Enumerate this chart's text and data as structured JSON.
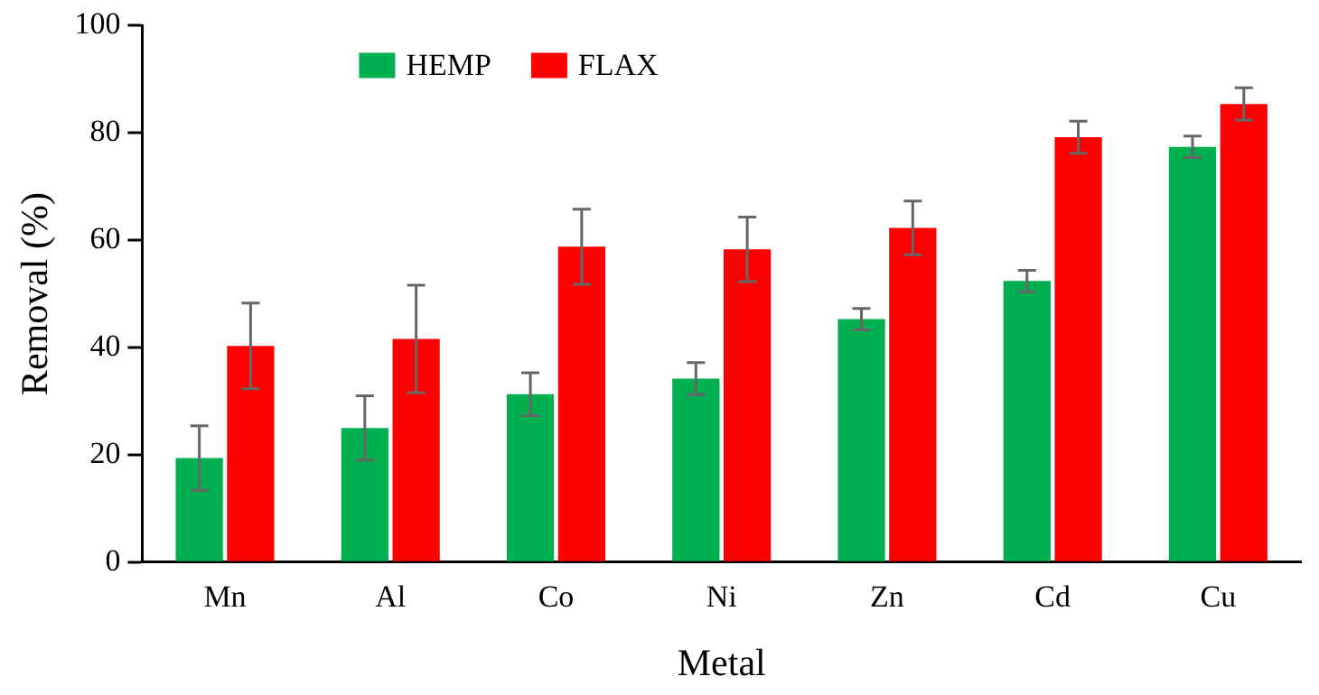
{
  "chart_data": {
    "type": "bar",
    "xlabel": "Metal",
    "ylabel": "Removal (%)",
    "categories": [
      "Mn",
      "Al",
      "Co",
      "Ni",
      "Zn",
      "Cd",
      "Cu"
    ],
    "series": [
      {
        "name": "HEMP",
        "color": "#00b050",
        "values": [
          19.4,
          25,
          31.3,
          34.2,
          45.3,
          52.4,
          77.4
        ],
        "errors": [
          6,
          6,
          4,
          3,
          2,
          2,
          2
        ]
      },
      {
        "name": "FLAX",
        "color": "#ff0000",
        "values": [
          40.3,
          41.6,
          58.8,
          58.3,
          62.3,
          79.2,
          85.4
        ],
        "errors": [
          8,
          10,
          7,
          6,
          5,
          3,
          3
        ]
      }
    ],
    "ylim": [
      0,
      100
    ],
    "yticks": [
      0,
      20,
      40,
      60,
      80,
      100
    ],
    "grid": false,
    "legend": "top left"
  }
}
